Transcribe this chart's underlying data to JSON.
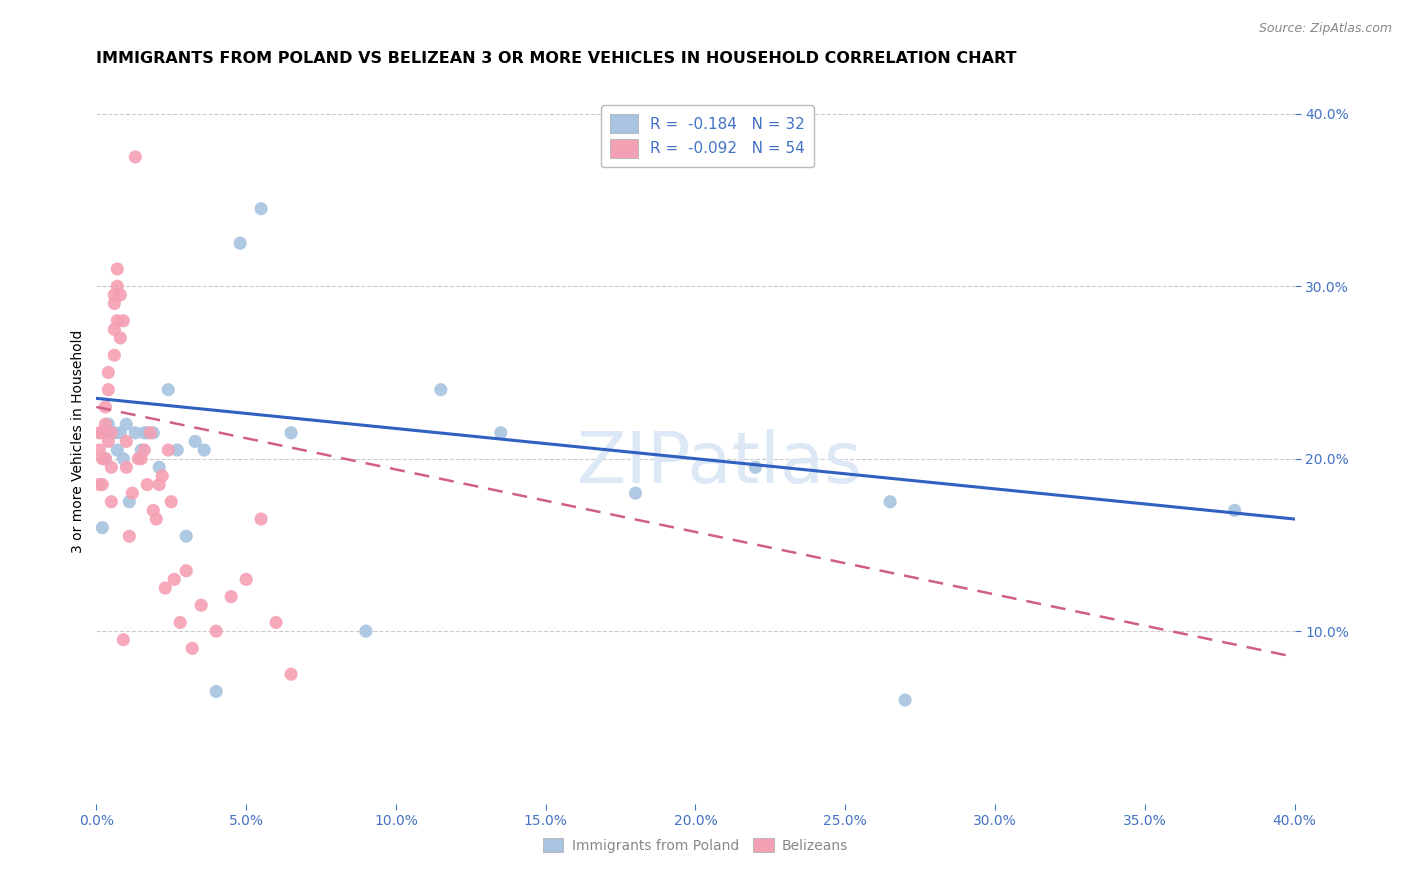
{
  "title": "IMMIGRANTS FROM POLAND VS BELIZEAN 3 OR MORE VEHICLES IN HOUSEHOLD CORRELATION CHART",
  "source": "Source: ZipAtlas.com",
  "ylabel": "3 or more Vehicles in Household",
  "xlim": [
    0.0,
    0.4
  ],
  "ylim": [
    0.0,
    0.42
  ],
  "xticks": [
    0.0,
    0.05,
    0.1,
    0.15,
    0.2,
    0.25,
    0.3,
    0.35,
    0.4
  ],
  "yticks_right": [
    0.1,
    0.2,
    0.3,
    0.4
  ],
  "blue_R": -0.184,
  "blue_N": 32,
  "pink_R": -0.092,
  "pink_N": 54,
  "blue_color": "#a8c4e0",
  "pink_color": "#f4a0b4",
  "blue_line_color": "#3060c0",
  "pink_line_color": "#d06080",
  "legend_label_blue": "Immigrants from Poland",
  "legend_label_pink": "Belizeans",
  "watermark": "ZIPatlas",
  "watermark_color": "#dce8f5",
  "blue_points_x": [
    0.002,
    0.003,
    0.004,
    0.006,
    0.007,
    0.008,
    0.009,
    0.01,
    0.011,
    0.013,
    0.015,
    0.016,
    0.017,
    0.019,
    0.021,
    0.024,
    0.027,
    0.03,
    0.033,
    0.036,
    0.04,
    0.048,
    0.055,
    0.065,
    0.09,
    0.115,
    0.135,
    0.18,
    0.22,
    0.265,
    0.27,
    0.38
  ],
  "blue_points_y": [
    0.16,
    0.2,
    0.22,
    0.215,
    0.205,
    0.215,
    0.2,
    0.22,
    0.175,
    0.215,
    0.205,
    0.215,
    0.215,
    0.215,
    0.195,
    0.24,
    0.205,
    0.155,
    0.21,
    0.205,
    0.065,
    0.325,
    0.345,
    0.215,
    0.1,
    0.24,
    0.215,
    0.18,
    0.195,
    0.175,
    0.06,
    0.17
  ],
  "pink_points_x": [
    0.001,
    0.001,
    0.001,
    0.002,
    0.002,
    0.002,
    0.003,
    0.003,
    0.003,
    0.004,
    0.004,
    0.004,
    0.005,
    0.005,
    0.005,
    0.006,
    0.006,
    0.006,
    0.006,
    0.007,
    0.007,
    0.007,
    0.008,
    0.008,
    0.009,
    0.009,
    0.01,
    0.01,
    0.011,
    0.012,
    0.013,
    0.014,
    0.015,
    0.016,
    0.017,
    0.018,
    0.019,
    0.02,
    0.021,
    0.022,
    0.023,
    0.024,
    0.025,
    0.026,
    0.028,
    0.03,
    0.032,
    0.035,
    0.04,
    0.045,
    0.05,
    0.055,
    0.06,
    0.065
  ],
  "pink_points_y": [
    0.215,
    0.205,
    0.185,
    0.2,
    0.215,
    0.185,
    0.23,
    0.22,
    0.2,
    0.25,
    0.24,
    0.21,
    0.195,
    0.215,
    0.175,
    0.29,
    0.275,
    0.26,
    0.295,
    0.28,
    0.3,
    0.31,
    0.295,
    0.27,
    0.095,
    0.28,
    0.21,
    0.195,
    0.155,
    0.18,
    0.375,
    0.2,
    0.2,
    0.205,
    0.185,
    0.215,
    0.17,
    0.165,
    0.185,
    0.19,
    0.125,
    0.205,
    0.175,
    0.13,
    0.105,
    0.135,
    0.09,
    0.115,
    0.1,
    0.12,
    0.13,
    0.165,
    0.105,
    0.075
  ],
  "title_fontsize": 11.5,
  "axis_label_fontsize": 10,
  "tick_fontsize": 10,
  "legend_fontsize": 11,
  "watermark_fontsize": 52,
  "right_tick_color": "#4472c4",
  "bottom_tick_color": "#4472c4",
  "grid_color": "#cccccc",
  "background_color": "#ffffff",
  "legend_value_color": "#4472c4",
  "legend_text_color": "#333333"
}
